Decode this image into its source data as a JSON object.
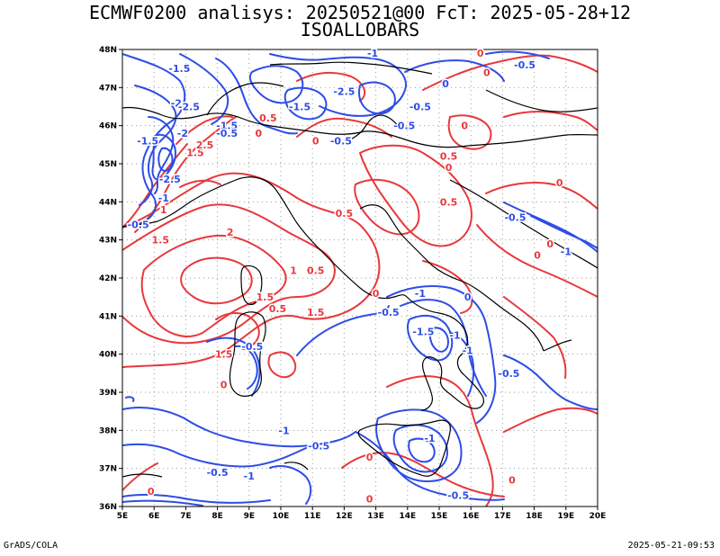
{
  "header": {
    "line1": "ECMWF0200 analisys: 20250521@00 FcT: 2025-05-28+12",
    "line2": "ISOALLOBARS"
  },
  "footer": {
    "left": "GrADS/COLA",
    "right": "2025-05-21-09:53"
  },
  "colors": {
    "positive_contours": "#e8383c",
    "negative_contours": "#2d4de6",
    "coastline": "#000000",
    "grid": "#9a9a9a"
  },
  "axes": {
    "lat_labels": [
      "48N",
      "47N",
      "46N",
      "45N",
      "44N",
      "43N",
      "42N",
      "41N",
      "40N",
      "39N",
      "38N",
      "37N",
      "36N"
    ],
    "lon_labels": [
      "5E",
      "6E",
      "7E",
      "8E",
      "9E",
      "10E",
      "11E",
      "12E",
      "13E",
      "14E",
      "15E",
      "16E",
      "17E",
      "18E",
      "19E",
      "20E"
    ],
    "lat_range": [
      36,
      48
    ],
    "lon_range": [
      5,
      20
    ],
    "grid": "dotted every 1 degree"
  },
  "contour_labels": [
    {
      "text": "-1.5",
      "lon": 6.8,
      "lat": 47.5,
      "sign": "neg"
    },
    {
      "text": "-2",
      "lon": 6.7,
      "lat": 46.6,
      "sign": "neg"
    },
    {
      "text": "-2.5",
      "lon": 7.1,
      "lat": 46.5,
      "sign": "neg"
    },
    {
      "text": "-1.5",
      "lon": 5.8,
      "lat": 45.6,
      "sign": "neg"
    },
    {
      "text": "-2",
      "lon": 6.9,
      "lat": 45.8,
      "sign": "neg"
    },
    {
      "text": "-2.5",
      "lon": 6.5,
      "lat": 44.6,
      "sign": "neg"
    },
    {
      "text": "-1",
      "lon": 6.3,
      "lat": 44.1,
      "sign": "neg"
    },
    {
      "text": "-0.5",
      "lon": 5.5,
      "lat": 43.4,
      "sign": "neg"
    },
    {
      "text": "-1.5",
      "lon": 8.3,
      "lat": 46.0,
      "sign": "neg"
    },
    {
      "text": "-0.5",
      "lon": 8.3,
      "lat": 45.8,
      "sign": "neg"
    },
    {
      "text": "-1.5",
      "lon": 10.6,
      "lat": 46.5,
      "sign": "neg"
    },
    {
      "text": "-2.5",
      "lon": 12.0,
      "lat": 46.9,
      "sign": "neg"
    },
    {
      "text": "-1",
      "lon": 12.9,
      "lat": 47.9,
      "sign": "neg"
    },
    {
      "text": "-0.5",
      "lon": 11.9,
      "lat": 45.6,
      "sign": "neg"
    },
    {
      "text": "-0.5",
      "lon": 14.4,
      "lat": 46.5,
      "sign": "neg"
    },
    {
      "text": "-0.5",
      "lon": 17.7,
      "lat": 47.6,
      "sign": "neg"
    },
    {
      "text": "-0.5",
      "lon": 17.4,
      "lat": 43.6,
      "sign": "neg"
    },
    {
      "text": "-1",
      "lon": 19.0,
      "lat": 42.7,
      "sign": "neg"
    },
    {
      "text": "-1",
      "lon": 14.4,
      "lat": 41.6,
      "sign": "neg"
    },
    {
      "text": "-0.5",
      "lon": 13.4,
      "lat": 41.1,
      "sign": "neg"
    },
    {
      "text": "-1.5",
      "lon": 14.5,
      "lat": 40.6,
      "sign": "neg"
    },
    {
      "text": "-1",
      "lon": 15.5,
      "lat": 40.5,
      "sign": "neg"
    },
    {
      "text": "-1",
      "lon": 15.9,
      "lat": 40.1,
      "sign": "neg"
    },
    {
      "text": "-0.5",
      "lon": 17.2,
      "lat": 39.5,
      "sign": "neg"
    },
    {
      "text": "-0.5",
      "lon": 9.1,
      "lat": 40.2,
      "sign": "neg"
    },
    {
      "text": "-1",
      "lon": 10.1,
      "lat": 38.0,
      "sign": "neg"
    },
    {
      "text": "-0.5",
      "lon": 11.2,
      "lat": 37.6,
      "sign": "neg"
    },
    {
      "text": "-1",
      "lon": 14.7,
      "lat": 37.8,
      "sign": "neg"
    },
    {
      "text": "-0.5",
      "lon": 8.0,
      "lat": 36.9,
      "sign": "neg"
    },
    {
      "text": "-1",
      "lon": 9.0,
      "lat": 36.8,
      "sign": "neg"
    },
    {
      "text": "-0.5",
      "lon": 15.6,
      "lat": 36.3,
      "sign": "neg"
    },
    {
      "text": "0",
      "lon": 15.2,
      "lat": 47.1,
      "sign": "neg"
    },
    {
      "text": "0",
      "lon": 15.9,
      "lat": 41.5,
      "sign": "neg"
    },
    {
      "text": "-0.5",
      "lon": 13.9,
      "lat": 46.0,
      "sign": "neg"
    },
    {
      "text": "0",
      "lon": 15.8,
      "lat": 46.0,
      "sign": "pos"
    },
    {
      "text": "0",
      "lon": 15.3,
      "lat": 44.9,
      "sign": "pos"
    },
    {
      "text": "0.5",
      "lon": 15.3,
      "lat": 45.2,
      "sign": "pos"
    },
    {
      "text": "0.5",
      "lon": 15.3,
      "lat": 44.0,
      "sign": "pos"
    },
    {
      "text": "0",
      "lon": 18.8,
      "lat": 44.5,
      "sign": "pos"
    },
    {
      "text": "0",
      "lon": 18.5,
      "lat": 42.9,
      "sign": "pos"
    },
    {
      "text": "0",
      "lon": 16.3,
      "lat": 47.9,
      "sign": "pos"
    },
    {
      "text": "0",
      "lon": 9.3,
      "lat": 45.8,
      "sign": "pos"
    },
    {
      "text": "0.5",
      "lon": 9.6,
      "lat": 46.2,
      "sign": "pos"
    },
    {
      "text": "0",
      "lon": 11.1,
      "lat": 45.6,
      "sign": "pos"
    },
    {
      "text": "1.5",
      "lon": 7.3,
      "lat": 45.3,
      "sign": "pos"
    },
    {
      "text": "2.5",
      "lon": 7.6,
      "lat": 45.5,
      "sign": "pos"
    },
    {
      "text": "1",
      "lon": 6.3,
      "lat": 43.8,
      "sign": "pos"
    },
    {
      "text": "1.5",
      "lon": 6.2,
      "lat": 43.0,
      "sign": "pos"
    },
    {
      "text": "2",
      "lon": 8.4,
      "lat": 43.2,
      "sign": "pos"
    },
    {
      "text": "0.5",
      "lon": 12.0,
      "lat": 43.7,
      "sign": "pos"
    },
    {
      "text": "1",
      "lon": 10.4,
      "lat": 42.2,
      "sign": "pos"
    },
    {
      "text": "0.5",
      "lon": 11.1,
      "lat": 42.2,
      "sign": "pos"
    },
    {
      "text": "1.5",
      "lon": 9.5,
      "lat": 41.5,
      "sign": "pos"
    },
    {
      "text": "0.5",
      "lon": 9.9,
      "lat": 41.2,
      "sign": "pos"
    },
    {
      "text": "1.5",
      "lon": 11.1,
      "lat": 41.1,
      "sign": "pos"
    },
    {
      "text": "0",
      "lon": 13.0,
      "lat": 41.6,
      "sign": "pos"
    },
    {
      "text": "1.5",
      "lon": 8.2,
      "lat": 40.0,
      "sign": "pos"
    },
    {
      "text": "0",
      "lon": 8.2,
      "lat": 39.2,
      "sign": "pos"
    },
    {
      "text": "0",
      "lon": 5.9,
      "lat": 36.4,
      "sign": "pos"
    },
    {
      "text": "0",
      "lon": 12.8,
      "lat": 36.2,
      "sign": "pos"
    },
    {
      "text": "0",
      "lon": 17.3,
      "lat": 36.7,
      "sign": "pos"
    },
    {
      "text": "0",
      "lon": 18.1,
      "lat": 42.6,
      "sign": "pos"
    },
    {
      "text": "0",
      "lon": 16.5,
      "lat": 47.4,
      "sign": "pos"
    },
    {
      "text": "0",
      "lon": 12.8,
      "lat": 37.3,
      "sign": "pos"
    }
  ]
}
